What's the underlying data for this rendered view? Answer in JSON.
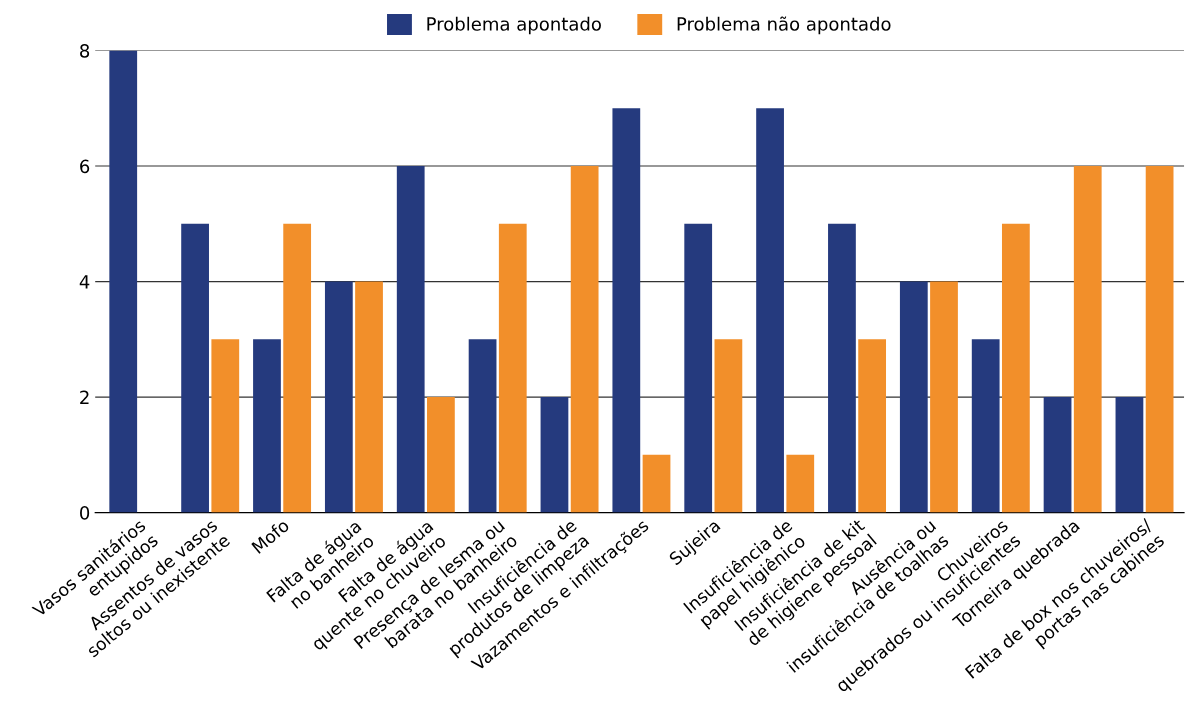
{
  "chart_data": {
    "type": "bar",
    "categories": [
      "Vasos sanitários\nentupidos",
      "Assentos de vasos\nsoltos ou inexistente",
      "Mofo",
      "Falta de água\nno banheiro",
      "Falta de água\nquente no chuveiro",
      "Presença de lesma ou\nbarata no banheiro",
      "Insuficiência de\nprodutos de limpeza",
      "Vazamentos e infiltrações",
      "Sujeira",
      "Insuficiência de\npapel higiênico",
      "Insuficiência de kit\nde higiene pessoal",
      "Ausência ou\ninsuficiência de toalhas",
      "Chuveiros\nquebrados ou insuficientes",
      "Torneira quebrada",
      "Falta de box nos chuveiros/\nportas nas cabines"
    ],
    "series": [
      {
        "name": "Problema apontado",
        "color": "#253a7e",
        "values": [
          8,
          5,
          3,
          4,
          6,
          3,
          2,
          7,
          5,
          7,
          5,
          4,
          3,
          2,
          2
        ]
      },
      {
        "name": "Problema não apontado",
        "color": "#f28f2a",
        "values": [
          0,
          3,
          5,
          4,
          2,
          5,
          6,
          1,
          3,
          1,
          3,
          4,
          5,
          6,
          6
        ]
      }
    ],
    "ylim": [
      0,
      8
    ],
    "yticks": [
      0,
      2,
      4,
      6,
      8
    ],
    "grid": "y",
    "legend": "top"
  }
}
